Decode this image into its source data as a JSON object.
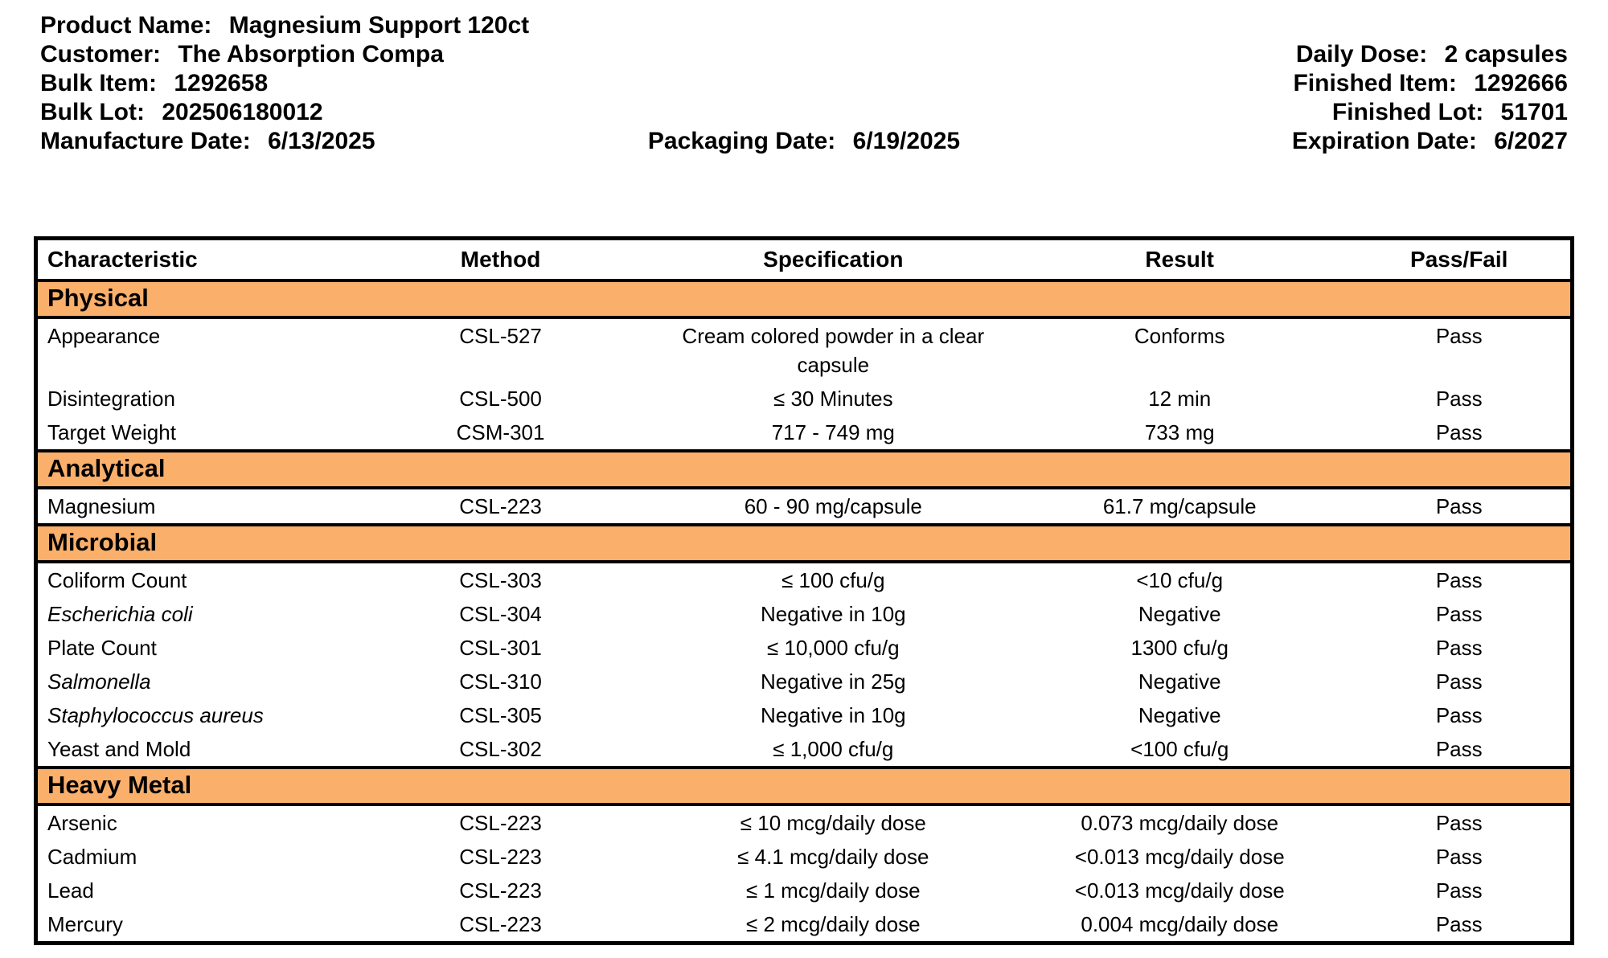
{
  "header": {
    "product_name_label": "Product Name:",
    "product_name": "Magnesium Support 120ct",
    "customer_label": "Customer:",
    "customer": "The Absorption Compa",
    "bulk_item_label": "Bulk Item:",
    "bulk_item": "1292658",
    "bulk_lot_label": "Bulk Lot:",
    "bulk_lot": "202506180012",
    "manufacture_date_label": "Manufacture Date:",
    "manufacture_date": "6/13/2025",
    "packaging_date_label": "Packaging Date:",
    "packaging_date": "6/19/2025",
    "daily_dose_label": "Daily Dose:",
    "daily_dose": "2 capsules",
    "finished_item_label": "Finished Item:",
    "finished_item": "1292666",
    "finished_lot_label": "Finished Lot:",
    "finished_lot": "51701",
    "expiration_date_label": "Expiration Date:",
    "expiration_date": "6/2027"
  },
  "table": {
    "columns": [
      "Characteristic",
      "Method",
      "Specification",
      "Result",
      "Pass/Fail"
    ],
    "sections": [
      {
        "name": "Physical",
        "rows": [
          {
            "characteristic": "Appearance",
            "italic": false,
            "method": "CSL-527",
            "specification": "Cream colored powder in a clear capsule",
            "result": "Conforms",
            "pass_fail": "Pass"
          },
          {
            "characteristic": "Disintegration",
            "italic": false,
            "method": "CSL-500",
            "specification": "≤ 30 Minutes",
            "result": "12 min",
            "pass_fail": "Pass"
          },
          {
            "characteristic": "Target Weight",
            "italic": false,
            "method": "CSM-301",
            "specification": "717 - 749 mg",
            "result": "733 mg",
            "pass_fail": "Pass"
          }
        ]
      },
      {
        "name": "Analytical",
        "rows": [
          {
            "characteristic": "Magnesium",
            "italic": false,
            "method": "CSL-223",
            "specification": "60 - 90 mg/capsule",
            "result": "61.7 mg/capsule",
            "pass_fail": "Pass"
          }
        ]
      },
      {
        "name": "Microbial",
        "rows": [
          {
            "characteristic": "Coliform Count",
            "italic": false,
            "method": "CSL-303",
            "specification": "≤ 100 cfu/g",
            "result": "<10 cfu/g",
            "pass_fail": "Pass"
          },
          {
            "characteristic": "Escherichia coli",
            "italic": true,
            "method": "CSL-304",
            "specification": "Negative in 10g",
            "result": "Negative",
            "pass_fail": "Pass"
          },
          {
            "characteristic": "Plate Count",
            "italic": false,
            "method": "CSL-301",
            "specification": "≤ 10,000 cfu/g",
            "result": "1300 cfu/g",
            "pass_fail": "Pass"
          },
          {
            "characteristic": "Salmonella",
            "italic": true,
            "method": "CSL-310",
            "specification": "Negative in 25g",
            "result": "Negative",
            "pass_fail": "Pass"
          },
          {
            "characteristic": "Staphylococcus aureus",
            "italic": true,
            "method": "CSL-305",
            "specification": "Negative in 10g",
            "result": "Negative",
            "pass_fail": "Pass"
          },
          {
            "characteristic": "Yeast and Mold",
            "italic": false,
            "method": "CSL-302",
            "specification": "≤ 1,000 cfu/g",
            "result": "<100 cfu/g",
            "pass_fail": "Pass"
          }
        ]
      },
      {
        "name": "Heavy Metal",
        "rows": [
          {
            "characteristic": "Arsenic",
            "italic": false,
            "method": "CSL-223",
            "specification": "≤ 10 mcg/daily dose",
            "result": "0.073 mcg/daily dose",
            "pass_fail": "Pass"
          },
          {
            "characteristic": "Cadmium",
            "italic": false,
            "method": "CSL-223",
            "specification": "≤ 4.1 mcg/daily dose",
            "result": "<0.013 mcg/daily dose",
            "pass_fail": "Pass"
          },
          {
            "characteristic": "Lead",
            "italic": false,
            "method": "CSL-223",
            "specification": "≤ 1 mcg/daily dose",
            "result": "<0.013 mcg/daily dose",
            "pass_fail": "Pass"
          },
          {
            "characteristic": "Mercury",
            "italic": false,
            "method": "CSL-223",
            "specification": "≤ 2 mcg/daily dose",
            "result": "0.004 mcg/daily dose",
            "pass_fail": "Pass"
          }
        ]
      }
    ]
  },
  "colors": {
    "section_bg": "#FAAF6B",
    "border": "#000000",
    "text": "#000000",
    "page_bg": "#FFFFFF"
  }
}
